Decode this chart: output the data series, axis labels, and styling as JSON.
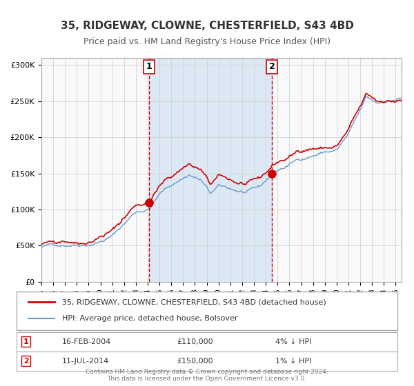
{
  "title": "35, RIDGEWAY, CLOWNE, CHESTERFIELD, S43 4BD",
  "subtitle": "Price paid vs. HM Land Registry's House Price Index (HPI)",
  "line1_label": "35, RIDGEWAY, CLOWNE, CHESTERFIELD, S43 4BD (detached house)",
  "line2_label": "HPI: Average price, detached house, Bolsover",
  "line1_color": "#cc0000",
  "line2_color": "#6699cc",
  "shade_color": "#dde8f5",
  "sale1_date": "16-FEB-2004",
  "sale1_price": 110000,
  "sale1_hpi": "4%",
  "sale1_x": 2004.12,
  "sale2_date": "11-JUL-2014",
  "sale2_price": 150000,
  "sale2_hpi": "1%",
  "sale2_x": 2014.53,
  "ylim": [
    0,
    310000
  ],
  "xlim": [
    1995.0,
    2025.5
  ],
  "footer": "Contains HM Land Registry data © Crown copyright and database right 2024.\nThis data is licensed under the Open Government Licence v3.0.",
  "bg_color": "#f9f9f9",
  "grid_color": "#cccccc",
  "note1_label": "1",
  "note2_label": "2"
}
